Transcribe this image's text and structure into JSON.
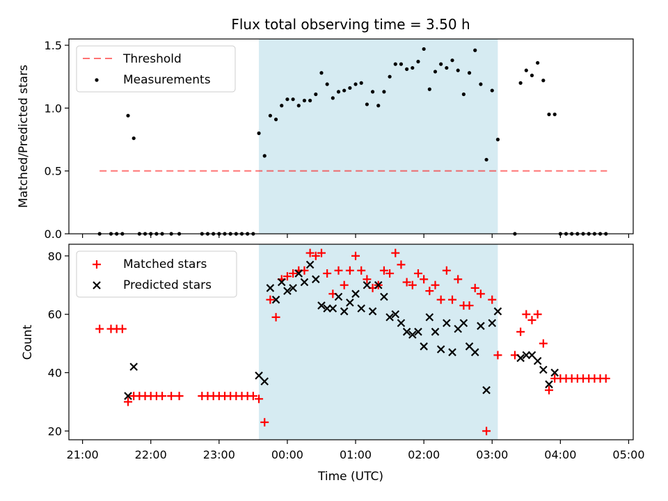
{
  "chart_data": [
    {
      "type": "scatter",
      "title": "Flux total observing time = 3.50 h",
      "xlabel": "",
      "ylabel": "Matched/Predicted stars",
      "xlim": [
        "20:48",
        "05:04"
      ],
      "ylim": [
        0,
        1.55
      ],
      "y_ticks": [
        0.0,
        0.5,
        1.0,
        1.5
      ],
      "y_tick_labels": [
        "0.0",
        "0.5",
        "1.0",
        "1.5"
      ],
      "x_tick_labels_hidden": true,
      "grid": false,
      "legend": "upper-left",
      "shaded_span": {
        "start": "23:35",
        "end": "03:05",
        "color": "#add8e6"
      },
      "threshold": {
        "name": "Threshold",
        "value": 0.5,
        "start": "21:15",
        "end": "04:41",
        "color": "#ff0000",
        "style": "dashed"
      },
      "series": [
        {
          "name": "Measurements",
          "color": "#000000",
          "marker": "dot",
          "x": [
            "21:15",
            "21:25",
            "21:30",
            "21:35",
            "21:40",
            "21:45",
            "21:50",
            "21:55",
            "22:00",
            "22:05",
            "22:10",
            "22:18",
            "22:25",
            "22:45",
            "22:50",
            "22:55",
            "23:00",
            "23:05",
            "23:10",
            "23:15",
            "23:20",
            "23:25",
            "23:30",
            "23:35",
            "23:40",
            "23:45",
            "23:50",
            "23:55",
            "00:00",
            "00:05",
            "00:10",
            "00:15",
            "00:20",
            "00:25",
            "00:30",
            "00:35",
            "00:40",
            "00:45",
            "00:50",
            "00:55",
            "01:00",
            "01:05",
            "01:10",
            "01:15",
            "01:20",
            "01:25",
            "01:30",
            "01:35",
            "01:40",
            "01:45",
            "01:50",
            "01:55",
            "02:00",
            "02:05",
            "02:10",
            "02:15",
            "02:20",
            "02:25",
            "02:30",
            "02:35",
            "02:40",
            "02:45",
            "02:50",
            "02:55",
            "03:00",
            "03:05",
            "03:20",
            "03:25",
            "03:30",
            "03:35",
            "03:40",
            "03:45",
            "03:50",
            "03:55",
            "04:00",
            "04:05",
            "04:10",
            "04:15",
            "04:20",
            "04:25",
            "04:30",
            "04:35",
            "04:40"
          ],
          "y": [
            0,
            0,
            0,
            0,
            0.94,
            0.76,
            0,
            0,
            0,
            0,
            0,
            0,
            0,
            0,
            0,
            0,
            0,
            0,
            0,
            0,
            0,
            0,
            0,
            0.8,
            0.62,
            0.94,
            0.91,
            1.02,
            1.07,
            1.07,
            1.02,
            1.06,
            1.06,
            1.11,
            1.28,
            1.19,
            1.08,
            1.13,
            1.14,
            1.16,
            1.19,
            1.2,
            1.03,
            1.13,
            1.02,
            1.13,
            1.25,
            1.35,
            1.35,
            1.31,
            1.32,
            1.37,
            1.47,
            1.15,
            1.29,
            1.35,
            1.32,
            1.38,
            1.3,
            1.11,
            1.28,
            1.46,
            1.19,
            0.59,
            1.14,
            0.75,
            0,
            1.2,
            1.3,
            1.26,
            1.36,
            1.22,
            0.95,
            0.95,
            0,
            0,
            0,
            0,
            0,
            0,
            0,
            0,
            0
          ]
        }
      ]
    },
    {
      "type": "scatter",
      "title": "",
      "xlabel": "Time (UTC)",
      "ylabel": "Count",
      "xlim": [
        "20:48",
        "05:04"
      ],
      "ylim": [
        17,
        84
      ],
      "y_ticks": [
        20,
        40,
        60,
        80
      ],
      "y_tick_labels": [
        "20",
        "40",
        "60",
        "80"
      ],
      "x_ticks": [
        "21:00",
        "22:00",
        "23:00",
        "00:00",
        "01:00",
        "02:00",
        "03:00",
        "04:00",
        "05:00"
      ],
      "x_tick_labels": [
        "21:00",
        "22:00",
        "23:00",
        "00:00",
        "01:00",
        "02:00",
        "03:00",
        "04:00",
        "05:00"
      ],
      "grid": false,
      "legend": "upper-left",
      "shaded_span": {
        "start": "23:35",
        "end": "03:05",
        "color": "#add8e6"
      },
      "series": [
        {
          "name": "Matched stars",
          "color": "#ff0000",
          "marker": "plus",
          "x": [
            "21:15",
            "21:25",
            "21:30",
            "21:35",
            "21:40",
            "21:45",
            "21:50",
            "21:55",
            "22:00",
            "22:05",
            "22:10",
            "22:18",
            "22:25",
            "22:45",
            "22:50",
            "22:55",
            "23:00",
            "23:05",
            "23:10",
            "23:15",
            "23:20",
            "23:25",
            "23:30",
            "23:35",
            "23:40",
            "23:45",
            "23:50",
            "23:55",
            "00:00",
            "00:05",
            "00:10",
            "00:15",
            "00:20",
            "00:25",
            "00:30",
            "00:35",
            "00:40",
            "00:45",
            "00:50",
            "00:55",
            "01:00",
            "01:05",
            "01:10",
            "01:15",
            "01:20",
            "01:25",
            "01:30",
            "01:35",
            "01:40",
            "01:45",
            "01:50",
            "01:55",
            "02:00",
            "02:05",
            "02:10",
            "02:15",
            "02:20",
            "02:25",
            "02:30",
            "02:35",
            "02:40",
            "02:45",
            "02:50",
            "02:55",
            "03:00",
            "03:05",
            "03:20",
            "03:25",
            "03:30",
            "03:35",
            "03:40",
            "03:45",
            "03:50",
            "03:55",
            "04:00",
            "04:05",
            "04:10",
            "04:15",
            "04:20",
            "04:25",
            "04:30",
            "04:35",
            "04:40"
          ],
          "y": [
            55,
            55,
            55,
            55,
            30,
            32,
            32,
            32,
            32,
            32,
            32,
            32,
            32,
            32,
            32,
            32,
            32,
            32,
            32,
            32,
            32,
            32,
            32,
            31,
            23,
            65,
            59,
            72,
            73,
            74,
            75,
            75,
            81,
            80,
            81,
            74,
            67,
            75,
            70,
            75,
            80,
            75,
            72,
            69,
            70,
            75,
            74,
            81,
            77,
            71,
            70,
            74,
            72,
            68,
            70,
            65,
            75,
            65,
            72,
            63,
            63,
            69,
            67,
            20,
            65,
            46,
            46,
            54,
            60,
            58,
            60,
            50,
            34,
            38,
            38,
            38,
            38,
            38,
            38,
            38,
            38,
            38,
            38
          ]
        },
        {
          "name": "Predicted stars",
          "color": "#000000",
          "marker": "x",
          "x": [
            "21:40",
            "21:45",
            "23:35",
            "23:40",
            "23:45",
            "23:50",
            "23:55",
            "00:00",
            "00:05",
            "00:10",
            "00:15",
            "00:20",
            "00:25",
            "00:30",
            "00:35",
            "00:40",
            "00:45",
            "00:50",
            "00:55",
            "01:00",
            "01:05",
            "01:10",
            "01:15",
            "01:20",
            "01:25",
            "01:30",
            "01:35",
            "01:40",
            "01:45",
            "01:50",
            "01:55",
            "02:00",
            "02:05",
            "02:10",
            "02:15",
            "02:20",
            "02:25",
            "02:30",
            "02:35",
            "02:40",
            "02:45",
            "02:50",
            "02:55",
            "03:00",
            "03:05",
            "03:25",
            "03:30",
            "03:35",
            "03:40",
            "03:45",
            "03:50",
            "03:55"
          ],
          "y": [
            32,
            42,
            39,
            37,
            69,
            65,
            71,
            68,
            69,
            74,
            71,
            77,
            72,
            63,
            62,
            62,
            66,
            61,
            64,
            67,
            62,
            70,
            61,
            70,
            66,
            59,
            60,
            57,
            54,
            53,
            54,
            49,
            59,
            54,
            48,
            57,
            47,
            55,
            57,
            49,
            47,
            56,
            34,
            57,
            61,
            45,
            46,
            46,
            44,
            41,
            36,
            40
          ]
        }
      ]
    }
  ]
}
